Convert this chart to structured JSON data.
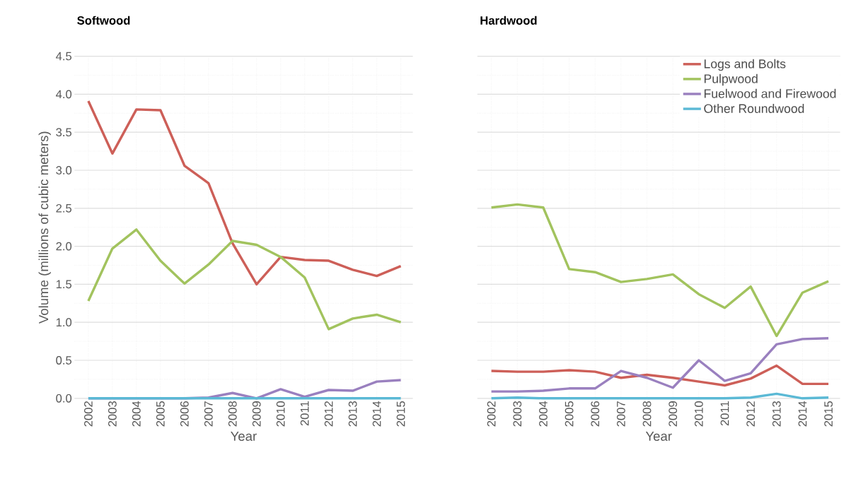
{
  "chart_data": [
    {
      "type": "line",
      "title": "Softwood",
      "xlabel": "Year",
      "ylabel": "Volume (millions of cubic meters)",
      "categories": [
        "2002",
        "2003",
        "2004",
        "2005",
        "2006",
        "2007",
        "2008",
        "2009",
        "2010",
        "2011",
        "2012",
        "2013",
        "2014",
        "2015"
      ],
      "ylim": [
        0,
        4.5
      ],
      "yticks": [
        {
          "value": 0,
          "label": "0.0"
        },
        {
          "value": 0.5,
          "label": "0.5"
        },
        {
          "value": 1,
          "label": "1.0"
        },
        {
          "value": 1.5,
          "label": "1.5"
        },
        {
          "value": 2,
          "label": "2.0"
        },
        {
          "value": 2.5,
          "label": "2.5"
        },
        {
          "value": 3,
          "label": "3.0"
        },
        {
          "value": 3.5,
          "label": "3.5"
        },
        {
          "value": 4,
          "label": "4.0"
        },
        {
          "value": 4.5,
          "label": "4.5"
        }
      ],
      "grid": true,
      "legend": false,
      "series": [
        {
          "color": "#cd5f58",
          "values": [
            3.91,
            3.22,
            3.8,
            3.79,
            3.06,
            2.83,
            2.04,
            1.5,
            1.86,
            1.82,
            1.81,
            1.69,
            1.61,
            1.74
          ]
        },
        {
          "color": "#a2c35e",
          "values": [
            1.28,
            1.97,
            2.22,
            1.81,
            1.51,
            1.76,
            2.07,
            2.02,
            1.86,
            1.59,
            0.91,
            1.05,
            1.1,
            1.0
          ]
        },
        {
          "color": "#9a80bf",
          "values": [
            0,
            0,
            0,
            0,
            0,
            0.01,
            0.07,
            0,
            0.12,
            0.02,
            0.11,
            0.1,
            0.22,
            0.24
          ]
        },
        {
          "color": "#5bb9d5",
          "values": [
            0,
            0,
            0,
            0,
            0,
            0,
            0,
            0,
            0,
            0,
            0,
            0,
            0,
            0
          ]
        }
      ]
    },
    {
      "type": "line",
      "title": "Hardwood",
      "xlabel": "Year",
      "categories": [
        "2002",
        "2003",
        "2004",
        "2005",
        "2006",
        "2007",
        "2008",
        "2009",
        "2010",
        "2011",
        "2012",
        "2013",
        "2014",
        "2015"
      ],
      "ylim": [
        0,
        4.5
      ],
      "tick_labels": "x",
      "grid": true,
      "legend": "top right",
      "yticks": [
        0,
        0.5,
        1,
        1.5,
        2,
        2.5,
        3,
        3.5,
        4,
        4.5
      ],
      "series": [
        {
          "name": "Logs and Bolts",
          "color": "#cd5f58",
          "values": [
            0.36,
            0.35,
            0.35,
            0.37,
            0.35,
            0.27,
            0.31,
            0.27,
            0.22,
            0.17,
            0.26,
            0.43,
            0.19,
            0.19
          ]
        },
        {
          "name": "Pulpwood",
          "color": "#a2c35e",
          "values": [
            2.51,
            2.55,
            2.51,
            1.7,
            1.66,
            1.53,
            1.57,
            1.63,
            1.37,
            1.19,
            1.47,
            0.82,
            1.39,
            1.54
          ]
        },
        {
          "name": "Fuelwood and Firewood",
          "color": "#9a80bf",
          "values": [
            0.09,
            0.09,
            0.1,
            0.13,
            0.13,
            0.36,
            0.27,
            0.14,
            0.5,
            0.23,
            0.33,
            0.71,
            0.78,
            0.79
          ]
        },
        {
          "name": "Other Roundwood",
          "color": "#5bb9d5",
          "values": [
            0,
            0.01,
            0,
            0,
            0,
            0,
            0,
            0,
            0,
            0,
            0.01,
            0.06,
            0,
            0.01
          ]
        }
      ]
    }
  ]
}
